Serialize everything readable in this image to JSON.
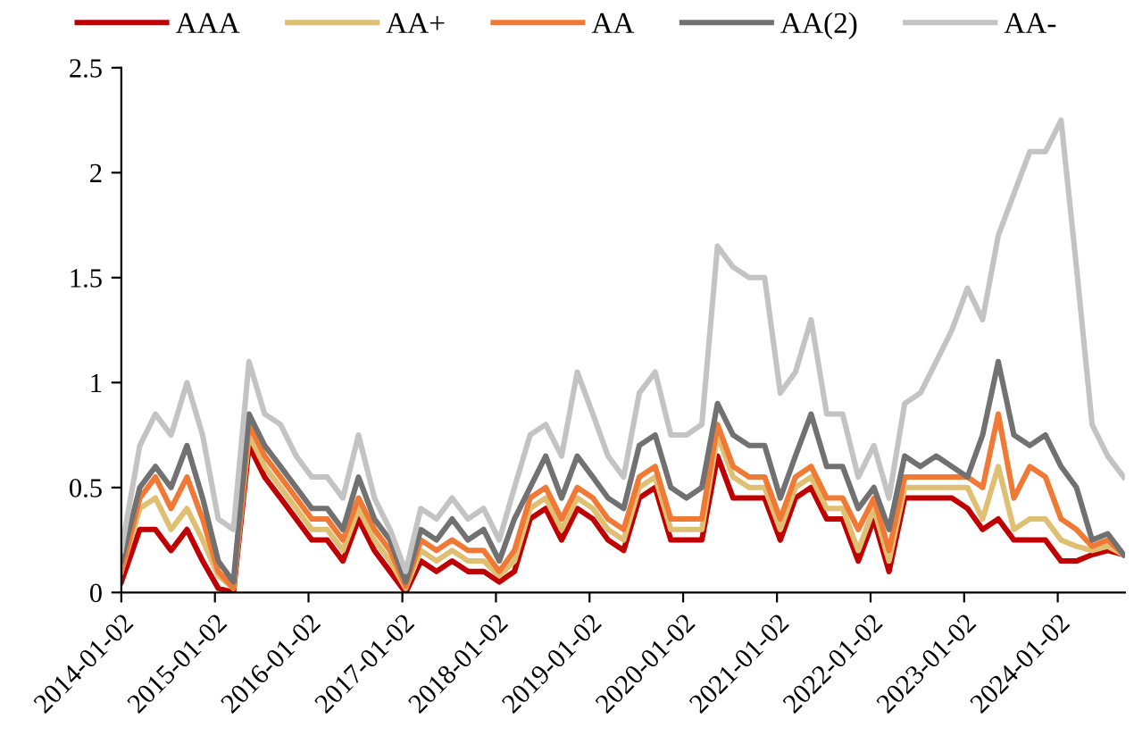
{
  "chart_data": {
    "type": "line",
    "x": [
      "2014-01-02",
      "2014-03",
      "2014-05",
      "2014-07",
      "2014-09",
      "2014-11",
      "2015-01",
      "2015-03",
      "2015-05",
      "2015-07",
      "2015-09",
      "2015-11",
      "2016-01",
      "2016-03",
      "2016-05",
      "2016-07",
      "2016-09",
      "2016-11",
      "2017-01",
      "2017-03",
      "2017-05",
      "2017-07",
      "2017-09",
      "2017-11",
      "2018-01",
      "2018-03",
      "2018-05",
      "2018-07",
      "2018-09",
      "2018-11",
      "2019-01",
      "2019-03",
      "2019-05",
      "2019-07",
      "2019-09",
      "2019-11",
      "2020-01",
      "2020-03",
      "2020-05",
      "2020-07",
      "2020-09",
      "2020-11",
      "2021-01",
      "2021-03",
      "2021-05",
      "2021-07",
      "2021-09",
      "2021-11",
      "2022-01",
      "2022-03",
      "2022-05",
      "2022-07",
      "2022-09",
      "2022-11",
      "2023-01",
      "2023-03",
      "2023-05",
      "2023-07",
      "2023-09",
      "2023-11",
      "2024-01",
      "2024-03",
      "2024-05",
      "2024-07",
      "2024-09"
    ],
    "series": [
      {
        "name": "AAA",
        "color": "#c00000",
        "values": [
          0.05,
          0.3,
          0.3,
          0.2,
          0.3,
          0.15,
          0.02,
          0.0,
          0.7,
          0.55,
          0.45,
          0.35,
          0.25,
          0.25,
          0.15,
          0.35,
          0.2,
          0.1,
          0.0,
          0.15,
          0.1,
          0.15,
          0.1,
          0.1,
          0.05,
          0.1,
          0.35,
          0.4,
          0.25,
          0.4,
          0.35,
          0.25,
          0.2,
          0.45,
          0.5,
          0.25,
          0.25,
          0.25,
          0.65,
          0.45,
          0.45,
          0.45,
          0.25,
          0.45,
          0.5,
          0.35,
          0.35,
          0.15,
          0.35,
          0.1,
          0.45,
          0.45,
          0.45,
          0.45,
          0.4,
          0.3,
          0.35,
          0.25,
          0.25,
          0.25,
          0.15,
          0.15,
          0.18,
          0.2,
          0.18
        ]
      },
      {
        "name": "AA+",
        "color": "#dfc072",
        "values": [
          0.1,
          0.4,
          0.45,
          0.3,
          0.4,
          0.25,
          0.08,
          0.02,
          0.75,
          0.6,
          0.5,
          0.4,
          0.3,
          0.3,
          0.2,
          0.4,
          0.25,
          0.15,
          0.02,
          0.2,
          0.15,
          0.2,
          0.15,
          0.15,
          0.08,
          0.15,
          0.4,
          0.45,
          0.3,
          0.45,
          0.4,
          0.3,
          0.25,
          0.5,
          0.55,
          0.3,
          0.3,
          0.3,
          0.75,
          0.55,
          0.5,
          0.5,
          0.3,
          0.5,
          0.55,
          0.4,
          0.4,
          0.2,
          0.4,
          0.15,
          0.5,
          0.5,
          0.5,
          0.5,
          0.5,
          0.35,
          0.6,
          0.3,
          0.35,
          0.35,
          0.25,
          0.22,
          0.2,
          0.22,
          0.18
        ]
      },
      {
        "name": "AA",
        "color": "#f07a35",
        "values": [
          0.1,
          0.45,
          0.55,
          0.4,
          0.55,
          0.35,
          0.1,
          0.02,
          0.8,
          0.65,
          0.55,
          0.45,
          0.35,
          0.35,
          0.25,
          0.45,
          0.3,
          0.2,
          0.03,
          0.25,
          0.2,
          0.25,
          0.2,
          0.2,
          0.1,
          0.2,
          0.45,
          0.5,
          0.35,
          0.5,
          0.45,
          0.35,
          0.3,
          0.55,
          0.6,
          0.35,
          0.35,
          0.35,
          0.8,
          0.6,
          0.55,
          0.55,
          0.35,
          0.55,
          0.6,
          0.45,
          0.45,
          0.3,
          0.45,
          0.2,
          0.55,
          0.55,
          0.55,
          0.55,
          0.55,
          0.5,
          0.85,
          0.45,
          0.6,
          0.55,
          0.35,
          0.3,
          0.22,
          0.25,
          0.18
        ]
      },
      {
        "name": "AA(2)",
        "color": "#717171",
        "values": [
          0.15,
          0.5,
          0.6,
          0.5,
          0.7,
          0.45,
          0.15,
          0.05,
          0.85,
          0.7,
          0.6,
          0.5,
          0.4,
          0.4,
          0.3,
          0.55,
          0.35,
          0.25,
          0.05,
          0.3,
          0.25,
          0.35,
          0.25,
          0.3,
          0.15,
          0.35,
          0.5,
          0.65,
          0.45,
          0.65,
          0.55,
          0.45,
          0.4,
          0.7,
          0.75,
          0.5,
          0.45,
          0.5,
          0.9,
          0.75,
          0.7,
          0.7,
          0.45,
          0.65,
          0.85,
          0.6,
          0.6,
          0.4,
          0.5,
          0.3,
          0.65,
          0.6,
          0.65,
          0.6,
          0.55,
          0.75,
          1.1,
          0.75,
          0.7,
          0.75,
          0.6,
          0.5,
          0.25,
          0.28,
          0.18
        ]
      },
      {
        "name": "AA-",
        "color": "#c3c3c3",
        "values": [
          0.2,
          0.7,
          0.85,
          0.75,
          1.0,
          0.75,
          0.35,
          0.3,
          1.1,
          0.85,
          0.8,
          0.65,
          0.55,
          0.55,
          0.45,
          0.75,
          0.45,
          0.3,
          0.1,
          0.4,
          0.35,
          0.45,
          0.35,
          0.4,
          0.25,
          0.5,
          0.75,
          0.8,
          0.65,
          1.05,
          0.85,
          0.65,
          0.55,
          0.95,
          1.05,
          0.75,
          0.75,
          0.8,
          1.65,
          1.55,
          1.5,
          1.5,
          0.95,
          1.05,
          1.3,
          0.85,
          0.85,
          0.55,
          0.7,
          0.45,
          0.9,
          0.95,
          1.1,
          1.25,
          1.45,
          1.3,
          1.7,
          1.9,
          2.1,
          2.1,
          2.25,
          1.55,
          0.8,
          0.65,
          0.55
        ]
      }
    ],
    "xlim": [
      "2014-01-02",
      "2024-09-20"
    ],
    "xticks": [
      "2014-01-02",
      "2015-01-02",
      "2016-01-02",
      "2017-01-02",
      "2018-01-02",
      "2019-01-02",
      "2020-01-02",
      "2021-01-02",
      "2022-01-02",
      "2023-01-02",
      "2024-01-02"
    ],
    "ylim": [
      0,
      2.5
    ],
    "yticks": [
      0,
      0.5,
      1,
      1.5,
      2,
      2.5
    ],
    "grid": false,
    "legend": "top",
    "marker": "none",
    "line_style": "solid"
  }
}
